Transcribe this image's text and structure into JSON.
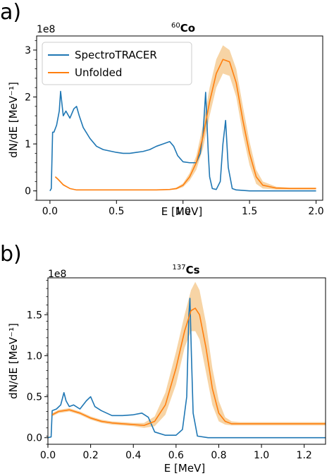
{
  "panels": {
    "a": {
      "letter": "a)",
      "title_sup": "60",
      "title_main": "Co",
      "multiplier": "1e8",
      "xlabel": "E [MeV]",
      "ylabel": "dN/dE [MeV⁻¹]"
    },
    "b": {
      "letter": "b)",
      "title_sup": "137",
      "title_main": "Cs",
      "multiplier": "1e8",
      "xlabel": "E [MeV]",
      "ylabel": "dN/dE [MeV⁻¹]"
    }
  },
  "legend": {
    "placement": "upper-left of panel a",
    "items": [
      "SpectroTRACER",
      "Unfolded"
    ]
  },
  "colors": {
    "spectrotracer": "#1f77b4",
    "unfolded": "#ff7f0e",
    "band": "#f5c98e"
  },
  "chart_data": [
    {
      "type": "line",
      "title": "60Co",
      "xlabel": "E [MeV]",
      "ylabel": "dN/dE [MeV⁻¹]",
      "y_multiplier": "1e8",
      "xlim": [
        -0.1,
        2.05
      ],
      "ylim": [
        -0.2,
        3.3
      ],
      "x_ticks": [
        "0.0",
        "0.5",
        "1.0",
        "1.5",
        "2.0"
      ],
      "y_ticks": [
        "0",
        "1",
        "2",
        "3"
      ],
      "series": [
        {
          "name": "SpectroTRACER",
          "x": [
            0.0,
            0.01,
            0.02,
            0.03,
            0.05,
            0.07,
            0.08,
            0.1,
            0.12,
            0.15,
            0.18,
            0.2,
            0.22,
            0.25,
            0.3,
            0.35,
            0.4,
            0.45,
            0.5,
            0.55,
            0.6,
            0.65,
            0.7,
            0.75,
            0.8,
            0.85,
            0.9,
            0.93,
            0.96,
            1.0,
            1.05,
            1.1,
            1.13,
            1.15,
            1.17,
            1.19,
            1.2,
            1.22,
            1.25,
            1.28,
            1.3,
            1.32,
            1.34,
            1.37,
            1.4,
            1.5,
            1.6,
            1.8,
            2.0
          ],
          "y": [
            0.0,
            0.05,
            1.25,
            1.25,
            1.4,
            1.7,
            2.12,
            1.6,
            1.7,
            1.55,
            1.75,
            1.8,
            1.6,
            1.35,
            1.12,
            0.95,
            0.88,
            0.85,
            0.82,
            0.8,
            0.8,
            0.82,
            0.84,
            0.88,
            0.95,
            1.0,
            1.05,
            0.95,
            0.75,
            0.62,
            0.6,
            0.6,
            0.8,
            1.2,
            2.1,
            0.8,
            0.3,
            0.05,
            0.03,
            0.2,
            1.0,
            1.5,
            0.5,
            0.05,
            0.02,
            0.0,
            0.0,
            0.0,
            0.0
          ]
        },
        {
          "name": "Unfolded",
          "x": [
            0.04,
            0.06,
            0.1,
            0.15,
            0.2,
            0.3,
            0.4,
            0.5,
            0.6,
            0.7,
            0.8,
            0.9,
            0.95,
            1.0,
            1.05,
            1.1,
            1.15,
            1.2,
            1.25,
            1.3,
            1.35,
            1.4,
            1.45,
            1.5,
            1.55,
            1.6,
            1.7,
            1.8,
            2.0
          ],
          "y": [
            0.3,
            0.25,
            0.13,
            0.05,
            0.02,
            0.02,
            0.02,
            0.02,
            0.02,
            0.02,
            0.02,
            0.03,
            0.05,
            0.12,
            0.3,
            0.6,
            1.15,
            1.9,
            2.5,
            2.8,
            2.75,
            2.3,
            1.5,
            0.8,
            0.3,
            0.12,
            0.06,
            0.05,
            0.05
          ],
          "band_upper": [
            0.32,
            0.27,
            0.15,
            0.06,
            0.03,
            0.03,
            0.03,
            0.03,
            0.03,
            0.03,
            0.03,
            0.04,
            0.07,
            0.16,
            0.38,
            0.75,
            1.4,
            2.2,
            2.8,
            3.1,
            3.0,
            2.6,
            1.8,
            1.05,
            0.45,
            0.2,
            0.09,
            0.07,
            0.07
          ],
          "band_lower": [
            0.28,
            0.23,
            0.11,
            0.04,
            0.01,
            0.01,
            0.01,
            0.01,
            0.01,
            0.01,
            0.01,
            0.02,
            0.03,
            0.08,
            0.22,
            0.45,
            0.9,
            1.6,
            2.2,
            2.5,
            2.45,
            2.0,
            1.2,
            0.55,
            0.15,
            0.05,
            0.03,
            0.03,
            0.03
          ]
        }
      ]
    },
    {
      "type": "line",
      "title": "137Cs",
      "xlabel": "E [MeV]",
      "ylabel": "dN/dE [MeV⁻¹]",
      "y_multiplier": "1e8",
      "xlim": [
        0.0,
        1.3
      ],
      "ylim": [
        -0.08,
        1.95
      ],
      "x_ticks": [
        "0.0",
        "0.2",
        "0.4",
        "0.6",
        "0.8",
        "1.0",
        "1.2"
      ],
      "y_ticks": [
        "0.0",
        "0.5",
        "1.0",
        "1.5"
      ],
      "series": [
        {
          "name": "SpectroTRACER",
          "x": [
            0.0,
            0.015,
            0.02,
            0.04,
            0.06,
            0.075,
            0.085,
            0.1,
            0.12,
            0.15,
            0.18,
            0.2,
            0.22,
            0.25,
            0.3,
            0.35,
            0.4,
            0.44,
            0.47,
            0.5,
            0.55,
            0.6,
            0.63,
            0.65,
            0.66,
            0.665,
            0.672,
            0.68,
            0.7,
            0.75,
            0.8,
            1.0,
            1.3
          ],
          "y": [
            0.0,
            0.01,
            0.33,
            0.35,
            0.4,
            0.55,
            0.45,
            0.38,
            0.4,
            0.35,
            0.45,
            0.5,
            0.38,
            0.33,
            0.27,
            0.27,
            0.28,
            0.3,
            0.25,
            0.07,
            0.03,
            0.03,
            0.1,
            0.5,
            1.5,
            1.7,
            1.0,
            0.3,
            0.02,
            0.0,
            0.0,
            0.0,
            0.0
          ]
        },
        {
          "name": "Unfolded",
          "x": [
            0.02,
            0.05,
            0.1,
            0.15,
            0.2,
            0.25,
            0.3,
            0.4,
            0.45,
            0.5,
            0.55,
            0.6,
            0.64,
            0.67,
            0.69,
            0.71,
            0.74,
            0.77,
            0.8,
            0.83,
            0.86,
            0.9,
            1.0,
            1.3
          ],
          "y": [
            0.28,
            0.32,
            0.34,
            0.3,
            0.24,
            0.2,
            0.18,
            0.16,
            0.15,
            0.2,
            0.4,
            0.85,
            1.3,
            1.55,
            1.58,
            1.5,
            1.1,
            0.6,
            0.3,
            0.2,
            0.17,
            0.17,
            0.17,
            0.17
          ],
          "band_upper": [
            0.3,
            0.34,
            0.36,
            0.32,
            0.26,
            0.22,
            0.2,
            0.18,
            0.18,
            0.26,
            0.55,
            1.05,
            1.5,
            1.8,
            1.9,
            1.8,
            1.4,
            0.85,
            0.45,
            0.25,
            0.2,
            0.19,
            0.19,
            0.19
          ],
          "band_lower": [
            0.26,
            0.3,
            0.32,
            0.28,
            0.22,
            0.18,
            0.16,
            0.14,
            0.12,
            0.14,
            0.28,
            0.65,
            1.1,
            1.3,
            1.3,
            1.2,
            0.8,
            0.4,
            0.2,
            0.16,
            0.15,
            0.15,
            0.15,
            0.15
          ]
        }
      ]
    }
  ]
}
